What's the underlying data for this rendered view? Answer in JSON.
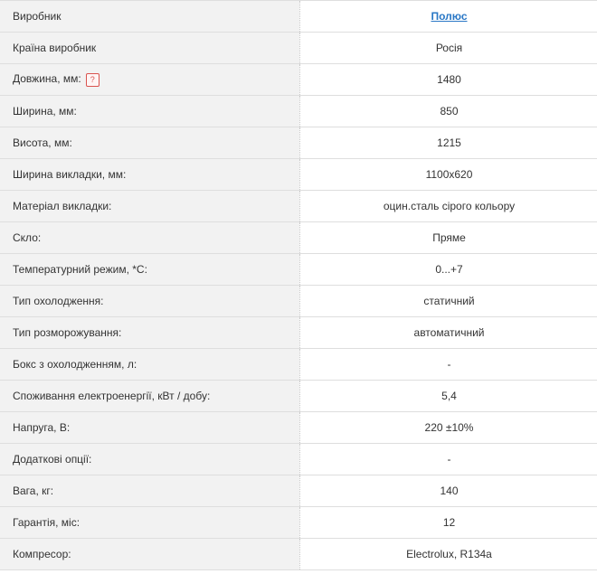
{
  "specs": {
    "help_icon_glyph": "?",
    "rows": [
      {
        "label": "Виробник",
        "value": "Полюс"
      },
      {
        "label": "Країна виробник",
        "value": "Росія"
      },
      {
        "label": "Довжина, мм:",
        "value": "1480"
      },
      {
        "label": "Ширина, мм:",
        "value": "850"
      },
      {
        "label": "Висота, мм:",
        "value": "1215"
      },
      {
        "label": "Ширина викладки, мм:",
        "value": "1100x620"
      },
      {
        "label": "Матеріал викладки:",
        "value": "оцин.сталь сірого кольору"
      },
      {
        "label": "Скло:",
        "value": "Пряме"
      },
      {
        "label": "Температурний режим, *С:",
        "value": "0...+7"
      },
      {
        "label": "Тип охолодження:",
        "value": "статичний"
      },
      {
        "label": "Тип розморожування:",
        "value": "автоматичний"
      },
      {
        "label": "Бокс з охолодженням, л:",
        "value": "-"
      },
      {
        "label": "Споживання електроенергії, кВт / добу:",
        "value": "5,4"
      },
      {
        "label": "Напруга, В:",
        "value": "220 ±10%"
      },
      {
        "label": "Додаткові опції:",
        "value": "-"
      },
      {
        "label": "Вага, кг:",
        "value": "140"
      },
      {
        "label": "Гарантія, міс:",
        "value": "12"
      },
      {
        "label": "Компресор:",
        "value": "Electrolux, R134a"
      }
    ]
  }
}
